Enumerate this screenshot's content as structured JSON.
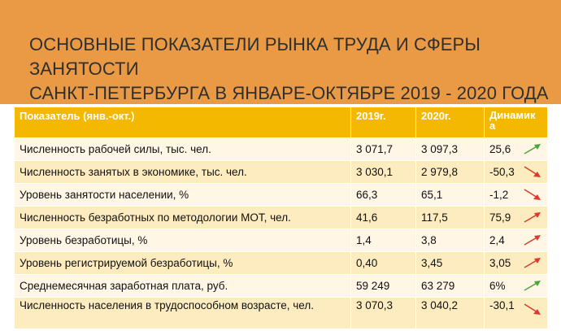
{
  "slide": {
    "title_line1": "ОСНОВНЫЕ ПОКАЗАТЕЛИ РЫНКА ТРУДА И СФЕРЫ ЗАНЯТОСТИ",
    "title_line2": "САНКТ-ПЕТЕРБУРГА В ЯНВАРЕ-ОКТЯБРЕ 2019 - 2020 ГОДА"
  },
  "table": {
    "headers": {
      "indicator": "Показатель (янв.-окт.)",
      "y2019": "2019г.",
      "y2020": "2020г.",
      "dynamics": "Динамика"
    },
    "rows": [
      {
        "label": "Численность рабочей силы, тыс. чел.",
        "v2019": "3 071,7",
        "v2020": "3 097,3",
        "dyn": "25,6",
        "arrow": "up",
        "arrow_color": "#4aa63b"
      },
      {
        "label": "Численность занятых в экономике, тыс. чел.",
        "v2019": "3 030,1",
        "v2020": "2 979,8",
        "dyn": "-50,3",
        "arrow": "down",
        "arrow_color": "#d93a2b"
      },
      {
        "label": "Уровень занятости населении, %",
        "v2019": "66,3",
        "v2020": "65,1",
        "dyn": "-1,2",
        "arrow": "down",
        "arrow_color": "#d93a2b"
      },
      {
        "label": "Численность безработных по методологии МОТ, чел.",
        "v2019": "41,6",
        "v2020": "117,5",
        "dyn": "75,9",
        "arrow": "up",
        "arrow_color": "#d93a2b"
      },
      {
        "label": "Уровень безработицы, %",
        "v2019": "1,4",
        "v2020": "3,8",
        "dyn": "2,4",
        "arrow": "up",
        "arrow_color": "#d93a2b"
      },
      {
        "label": "Уровень регистрируемой безработицы, %",
        "v2019": "0,40",
        "v2020": "3,45",
        "dyn": "3,05",
        "arrow": "up",
        "arrow_color": "#d93a2b"
      },
      {
        "label": "Среднемесячная заработная плата, руб.",
        "v2019": "59 249",
        "v2020": "63 279",
        "dyn": "6%",
        "arrow": "up",
        "arrow_color": "#4aa63b"
      },
      {
        "label": "Численность населения в трудоспособном возрасте, чел.",
        "v2019": "3 070,3",
        "v2020": "3 040,2",
        "dyn": "-30,1",
        "arrow": "down",
        "arrow_color": "#d93a2b"
      }
    ]
  }
}
